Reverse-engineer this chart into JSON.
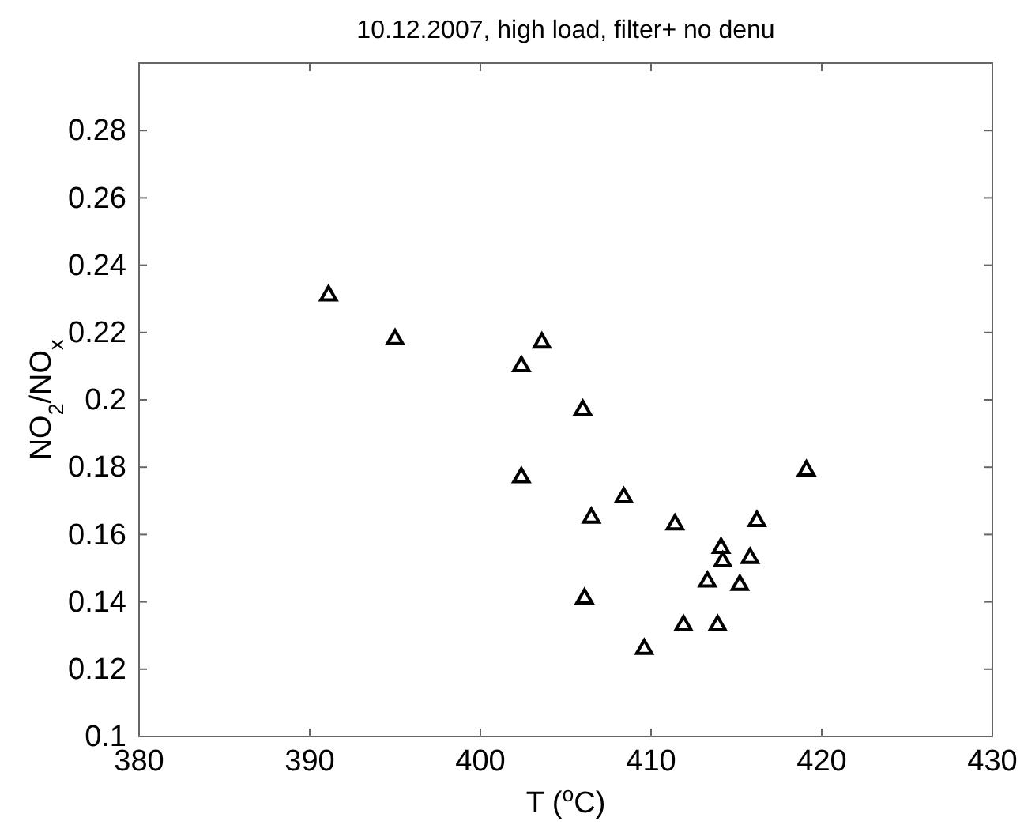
{
  "chart_data": {
    "type": "scatter",
    "title": "10.12.2007, high load, filter+ no denu",
    "xlabel": "T ($^{o}$C)",
    "ylabel": "NO$_{2}$/NO$_{x}$",
    "marker": "triangle",
    "grid": false,
    "xlim": [
      380,
      430
    ],
    "xticks": [
      380,
      390,
      400,
      410,
      420,
      430
    ],
    "ylim": [
      0.1,
      0.3
    ],
    "yticks": [
      0.1,
      0.12,
      0.14,
      0.16,
      0.18,
      0.2,
      0.22,
      0.24,
      0.26,
      0.28
    ],
    "series": [
      {
        "color": "#000000",
        "x": [
          391.1,
          395.0,
          402.4,
          403.6,
          406.0,
          402.4,
          419.1,
          408.4,
          406.5,
          411.4,
          416.2,
          414.1,
          414.2,
          415.8,
          413.3,
          415.2,
          406.1,
          411.9,
          413.9,
          409.6
        ],
        "values": [
          0.231,
          0.218,
          0.21,
          0.217,
          0.197,
          0.177,
          0.179,
          0.171,
          0.165,
          0.163,
          0.164,
          0.156,
          0.152,
          0.153,
          0.146,
          0.145,
          0.141,
          0.133,
          0.133,
          0.126
        ]
      }
    ]
  }
}
